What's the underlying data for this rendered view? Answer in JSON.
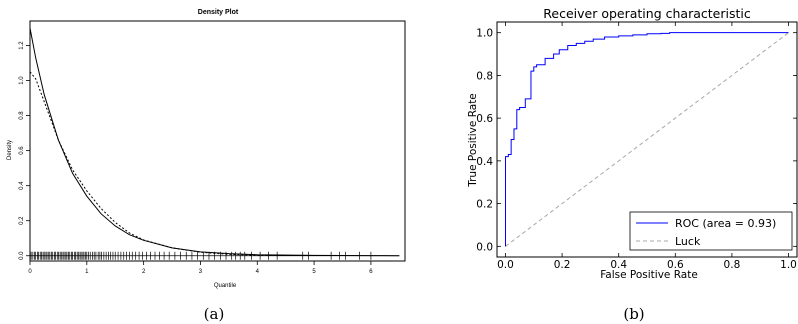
{
  "panels": {
    "a": {
      "caption": "(a)",
      "chart_data": {
        "type": "line",
        "title": "Density Plot",
        "xlabel": "Quantile",
        "ylabel": "Density",
        "xlim": [
          0,
          6.6
        ],
        "ylim": [
          -0.03,
          1.34
        ],
        "x_ticks": [
          "0",
          "1",
          "2",
          "3",
          "4",
          "5",
          "6"
        ],
        "y_ticks": [
          "0.0",
          "0.2",
          "0.4",
          "0.6",
          "0.8",
          "1.0",
          "1.2"
        ],
        "grid": false,
        "series": [
          {
            "style": "solid",
            "x": [
              0,
              0.1,
              0.25,
              0.5,
              0.75,
              1.0,
              1.25,
              1.5,
              1.75,
              2.0,
              2.5,
              3.0,
              3.5,
              4.0,
              5.0,
              6.0,
              6.5
            ],
            "y": [
              1.3,
              1.13,
              0.92,
              0.66,
              0.47,
              0.34,
              0.24,
              0.17,
              0.12,
              0.088,
              0.045,
              0.022,
              0.012,
              0.006,
              0.002,
              0.0005,
              0.0002
            ]
          },
          {
            "style": "dotted",
            "x": [
              0,
              0.1,
              0.25,
              0.5,
              0.75,
              1.0,
              1.25,
              1.5,
              1.75,
              2.0,
              2.5,
              3.0,
              3.5,
              4.0,
              4.5
            ],
            "y": [
              1.05,
              1.01,
              0.88,
              0.66,
              0.49,
              0.37,
              0.27,
              0.19,
              0.13,
              0.09,
              0.045,
              0.02,
              0.008,
              0.003,
              0.001
            ]
          }
        ],
        "rug": [
          0.0,
          0.02,
          0.05,
          0.08,
          0.1,
          0.13,
          0.15,
          0.18,
          0.2,
          0.23,
          0.25,
          0.28,
          0.3,
          0.33,
          0.35,
          0.38,
          0.4,
          0.43,
          0.45,
          0.48,
          0.5,
          0.53,
          0.55,
          0.58,
          0.6,
          0.63,
          0.65,
          0.68,
          0.7,
          0.73,
          0.75,
          0.78,
          0.8,
          0.83,
          0.85,
          0.88,
          0.9,
          0.93,
          0.95,
          0.98,
          1.0,
          1.03,
          1.06,
          1.1,
          1.13,
          1.16,
          1.2,
          1.23,
          1.26,
          1.3,
          1.34,
          1.38,
          1.42,
          1.46,
          1.5,
          1.55,
          1.6,
          1.65,
          1.7,
          1.75,
          1.8,
          1.86,
          1.92,
          1.98,
          2.05,
          2.12,
          2.2,
          2.28,
          2.36,
          2.45,
          2.55,
          2.65,
          2.75,
          2.85,
          2.95,
          3.05,
          3.15,
          3.25,
          3.35,
          3.45,
          3.55,
          3.62,
          3.7,
          3.78,
          3.9,
          4.05,
          4.2,
          4.35,
          4.8,
          4.9,
          5.3,
          5.45,
          5.55,
          5.8,
          6.0
        ]
      }
    },
    "b": {
      "caption": "(b)",
      "chart_data": {
        "type": "line",
        "title": "Receiver operating characteristic",
        "xlabel": "False Positive Rate",
        "ylabel": "True Positive Rate",
        "xlim": [
          -0.03,
          1.03
        ],
        "ylim": [
          -0.05,
          1.05
        ],
        "x_ticks": [
          "0.0",
          "0.2",
          "0.4",
          "0.6",
          "0.8",
          "1.0"
        ],
        "y_ticks": [
          "0.0",
          "0.2",
          "0.4",
          "0.6",
          "0.8",
          "1.0"
        ],
        "grid": false,
        "legend_position": "bottom-right",
        "series": [
          {
            "name": "ROC (area = 0.93)",
            "color": "#0000ff",
            "style": "step",
            "x": [
              0.0,
              0.0,
              0.01,
              0.01,
              0.02,
              0.02,
              0.03,
              0.03,
              0.04,
              0.04,
              0.05,
              0.05,
              0.07,
              0.07,
              0.09,
              0.09,
              0.1,
              0.1,
              0.11,
              0.11,
              0.14,
              0.14,
              0.17,
              0.17,
              0.19,
              0.19,
              0.22,
              0.22,
              0.25,
              0.25,
              0.28,
              0.28,
              0.31,
              0.31,
              0.35,
              0.35,
              0.4,
              0.4,
              0.45,
              0.45,
              0.5,
              0.5,
              0.55,
              0.55,
              0.58,
              0.58,
              1.0
            ],
            "y": [
              0.0,
              0.42,
              0.42,
              0.43,
              0.43,
              0.5,
              0.5,
              0.55,
              0.55,
              0.64,
              0.64,
              0.65,
              0.65,
              0.69,
              0.69,
              0.82,
              0.82,
              0.84,
              0.84,
              0.85,
              0.85,
              0.88,
              0.88,
              0.9,
              0.9,
              0.92,
              0.92,
              0.94,
              0.94,
              0.95,
              0.95,
              0.96,
              0.96,
              0.97,
              0.97,
              0.98,
              0.98,
              0.985,
              0.985,
              0.99,
              0.99,
              0.995,
              0.995,
              0.997,
              0.997,
              1.0,
              1.0
            ]
          },
          {
            "name": "Luck",
            "color": "#a8a8a8",
            "style": "dashed",
            "x": [
              0,
              1
            ],
            "y": [
              0,
              1
            ]
          }
        ]
      }
    }
  }
}
